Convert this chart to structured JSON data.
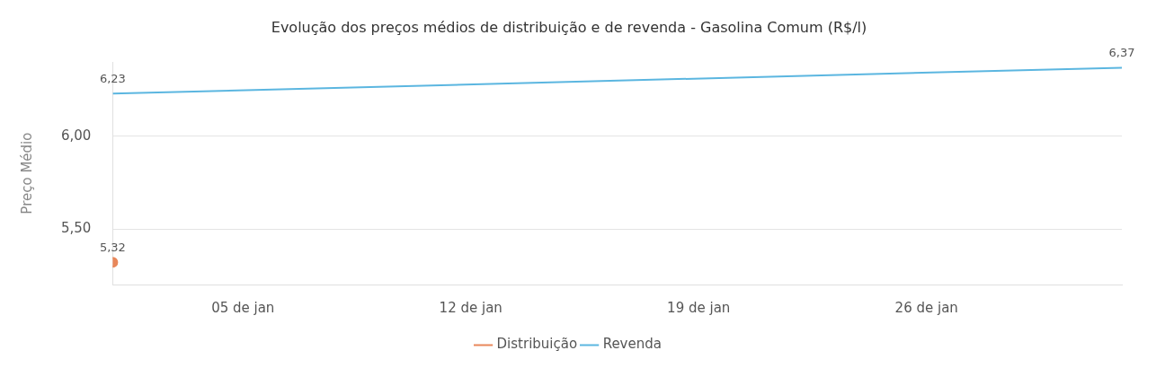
{
  "chart_data": {
    "type": "line",
    "title": "Evolução dos preços médios de distribuição e de revenda - Gasolina Comum (R$/l)",
    "ylabel": "Preço Médio",
    "series": [
      {
        "name": "Distribuição",
        "color": "#e8875a",
        "x": [
          "--01-01"
        ],
        "values": [
          5.32
        ],
        "value_labels": [
          "5,32"
        ],
        "marker": "circle"
      },
      {
        "name": "Revenda",
        "color": "#5bb6e0",
        "x": [
          "--01-01",
          "--02-01"
        ],
        "values": [
          6.23,
          6.37
        ],
        "value_labels": [
          "6,23",
          "6,37"
        ]
      }
    ],
    "xlim": [
      "--01-01",
      "--02-01"
    ],
    "xticks": [
      {
        "value": "--01-05",
        "label": "05 de jan"
      },
      {
        "value": "--01-12",
        "label": "12 de jan"
      },
      {
        "value": "--01-19",
        "label": "19 de jan"
      },
      {
        "value": "--01-26",
        "label": "26 de jan"
      }
    ],
    "ylim": [
      5.2,
      6.4
    ],
    "yticks": [
      {
        "value": 5.5,
        "label": "5,50"
      },
      {
        "value": 6,
        "label": "6,00"
      }
    ],
    "grid": "y",
    "legend": "bottom",
    "marker": "none"
  }
}
